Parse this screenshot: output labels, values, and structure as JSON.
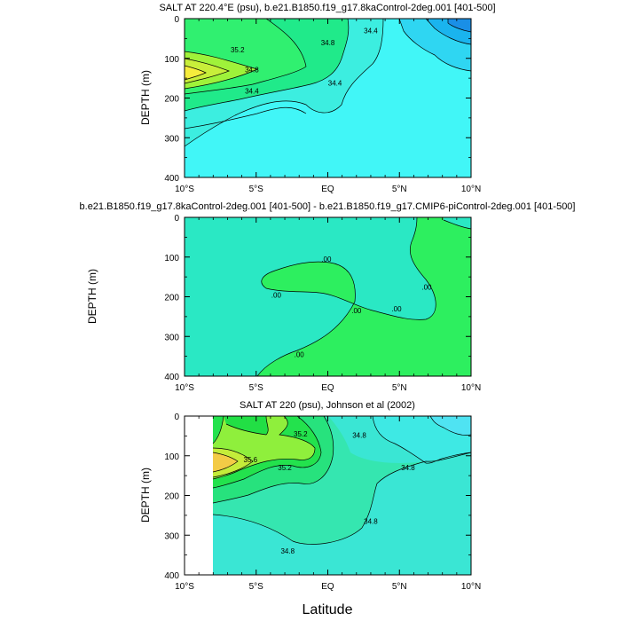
{
  "figure": {
    "xlabel": "Latitude",
    "shared_ylabel": "DEPTH (m)"
  },
  "chart_data": [
    {
      "type": "heatmap",
      "title": "SALT AT 220.4°E (psu), b.e21.B1850.f19_g17.8kaControl-2deg.001 [401-500]",
      "xlabel": "Latitude",
      "ylabel": "DEPTH (m)",
      "x_ticks": [
        -10,
        -5,
        0,
        5,
        10
      ],
      "x_tick_labels": [
        "10°S",
        "5°S",
        "EQ",
        "5°N",
        "10°N"
      ],
      "xlim": [
        -10,
        10
      ],
      "y_ticks": [
        0,
        100,
        200,
        300,
        400
      ],
      "ylim": [
        0,
        400
      ],
      "y_reversed": true,
      "contour_labels": [
        {
          "text": "35.2",
          "lat": -6.3,
          "depth": 78
        },
        {
          "text": "34.8",
          "lat": -5.3,
          "depth": 128
        },
        {
          "text": "34.4",
          "lat": -5.3,
          "depth": 182
        },
        {
          "text": "34.8",
          "lat": 0.0,
          "depth": 60
        },
        {
          "text": "34.4",
          "lat": 0.5,
          "depth": 162
        },
        {
          "text": "34.4",
          "lat": 3.0,
          "depth": 30
        }
      ]
    },
    {
      "type": "heatmap",
      "title": "b.e21.B1850.f19_g17.8kaControl-2deg.001 [401-500] - b.e21.B1850.f19_g17.CMIP6-piControl-2deg.001 [401-500]",
      "xlabel": "",
      "ylabel": "DEPTH (m)",
      "x_ticks": [
        -10,
        -5,
        0,
        5,
        10
      ],
      "x_tick_labels": [
        "10°S",
        "5°S",
        "EQ",
        "5°N",
        "10°N"
      ],
      "xlim": [
        -10,
        10
      ],
      "y_ticks": [
        0,
        100,
        200,
        300,
        400
      ],
      "ylim": [
        0,
        400
      ],
      "y_reversed": true,
      "contour_labels": [
        {
          "text": ".00",
          "lat": -0.1,
          "depth": 105
        },
        {
          "text": ".00",
          "lat": -3.6,
          "depth": 195
        },
        {
          "text": ".00",
          "lat": 2.0,
          "depth": 235
        },
        {
          "text": ".00",
          "lat": 4.8,
          "depth": 230
        },
        {
          "text": ".00",
          "lat": 6.9,
          "depth": 175
        },
        {
          "text": ".00",
          "lat": -2.0,
          "depth": 345
        }
      ]
    },
    {
      "type": "heatmap",
      "title": "SALT AT 220 (psu), Johnson et al (2002)",
      "xlabel": "Latitude",
      "ylabel": "DEPTH (m)",
      "x_ticks": [
        -10,
        -5,
        0,
        5,
        10
      ],
      "x_tick_labels": [
        "10°S",
        "5°S",
        "EQ",
        "5°N",
        "10°N"
      ],
      "xlim": [
        -10,
        10
      ],
      "y_ticks": [
        0,
        100,
        200,
        300,
        400
      ],
      "ylim": [
        0,
        400
      ],
      "y_reversed": true,
      "contour_labels": [
        {
          "text": "35.2",
          "lat": -1.9,
          "depth": 45
        },
        {
          "text": "35.6",
          "lat": -5.4,
          "depth": 110
        },
        {
          "text": "35.2",
          "lat": -3.0,
          "depth": 130
        },
        {
          "text": "34.8",
          "lat": 2.2,
          "depth": 48
        },
        {
          "text": "34.8",
          "lat": 5.6,
          "depth": 130
        },
        {
          "text": "34.8",
          "lat": 3.0,
          "depth": 265
        },
        {
          "text": "34.8",
          "lat": -2.8,
          "depth": 340
        }
      ]
    }
  ]
}
